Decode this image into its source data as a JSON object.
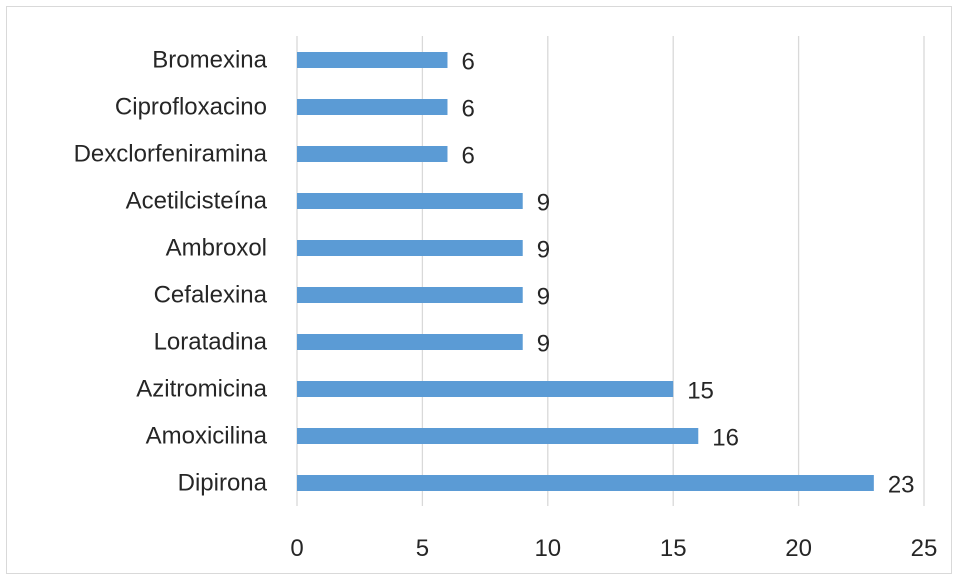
{
  "chart_data": {
    "type": "bar",
    "orientation": "horizontal",
    "categories": [
      "Bromexina",
      "Ciprofloxacino",
      "Dexclorfeniramina",
      "Acetilcisteína",
      "Ambroxol",
      "Cefalexina",
      "Loratadina",
      "Azitromicina",
      "Amoxicilina",
      "Dipirona"
    ],
    "values": [
      6,
      6,
      6,
      9,
      9,
      9,
      9,
      15,
      16,
      23
    ],
    "xlim": [
      0,
      25
    ],
    "xticks": [
      0,
      5,
      10,
      15,
      20,
      25
    ],
    "grid": "vertical",
    "data_labels": true,
    "bar_color": "#5b9bd5"
  }
}
